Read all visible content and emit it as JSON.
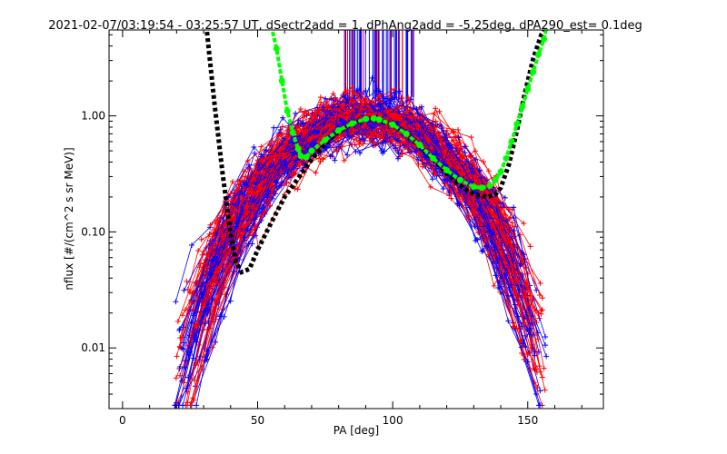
{
  "chart_data": {
    "type": "scatter",
    "title": "2021-02-07/03:19:54 - 03:25:57 UT, dSectr2add = 1, dPhAng2add = -5.25deg, dPA290_est=   0.1deg",
    "xlabel": "PA [deg]",
    "ylabel": "nflux [#/(cm^2 s sr MeV)]",
    "xlim": [
      -5,
      178
    ],
    "ylim": [
      0.003,
      5.5
    ],
    "yscale": "log",
    "xticks": [
      0,
      50,
      100,
      150
    ],
    "xtick_labels": [
      "0",
      "50",
      "100",
      "150"
    ],
    "yticks": [
      0.01,
      0.1,
      1.0
    ],
    "ytick_labels": [
      "0.01",
      "0.10",
      "1.00"
    ],
    "grid": false,
    "legend": "none",
    "colors": {
      "red": "#ff0000",
      "blue": "#0000ff",
      "black": "#000000",
      "green": "#00ff00"
    },
    "series": [
      {
        "marker": "dashed-line",
        "color": "#000000",
        "x": [
          31,
          34,
          37,
          40,
          42,
          44,
          47,
          50,
          55,
          60,
          65,
          70,
          75,
          80,
          85,
          90,
          93,
          95,
          100,
          105,
          110,
          115,
          120,
          125,
          130,
          135,
          138,
          140,
          143,
          146,
          149,
          152,
          155,
          157
        ],
        "y": [
          6.0,
          1.3,
          0.32,
          0.095,
          0.055,
          0.045,
          0.048,
          0.07,
          0.12,
          0.2,
          0.29,
          0.42,
          0.57,
          0.74,
          0.86,
          0.93,
          0.94,
          0.92,
          0.84,
          0.7,
          0.55,
          0.42,
          0.32,
          0.25,
          0.21,
          0.2,
          0.21,
          0.24,
          0.38,
          0.75,
          1.6,
          3.1,
          5.0,
          6.0
        ]
      },
      {
        "marker": "dots",
        "color": "#00ff00",
        "x": [
          55,
          57,
          59,
          61,
          63,
          65,
          66,
          68,
          70,
          75,
          80,
          85,
          90,
          93,
          95,
          100,
          105,
          110,
          115,
          120,
          125,
          130,
          133,
          136,
          138,
          140,
          142,
          144,
          146,
          148,
          150,
          152,
          154,
          156,
          157
        ],
        "y": [
          6.0,
          3.8,
          2.0,
          1.1,
          0.72,
          0.52,
          0.45,
          0.44,
          0.5,
          0.62,
          0.75,
          0.86,
          0.94,
          0.95,
          0.93,
          0.84,
          0.7,
          0.56,
          0.43,
          0.34,
          0.28,
          0.245,
          0.24,
          0.25,
          0.28,
          0.33,
          0.43,
          0.6,
          0.85,
          1.2,
          1.7,
          2.4,
          3.4,
          4.6,
          5.8
        ]
      }
    ]
  }
}
